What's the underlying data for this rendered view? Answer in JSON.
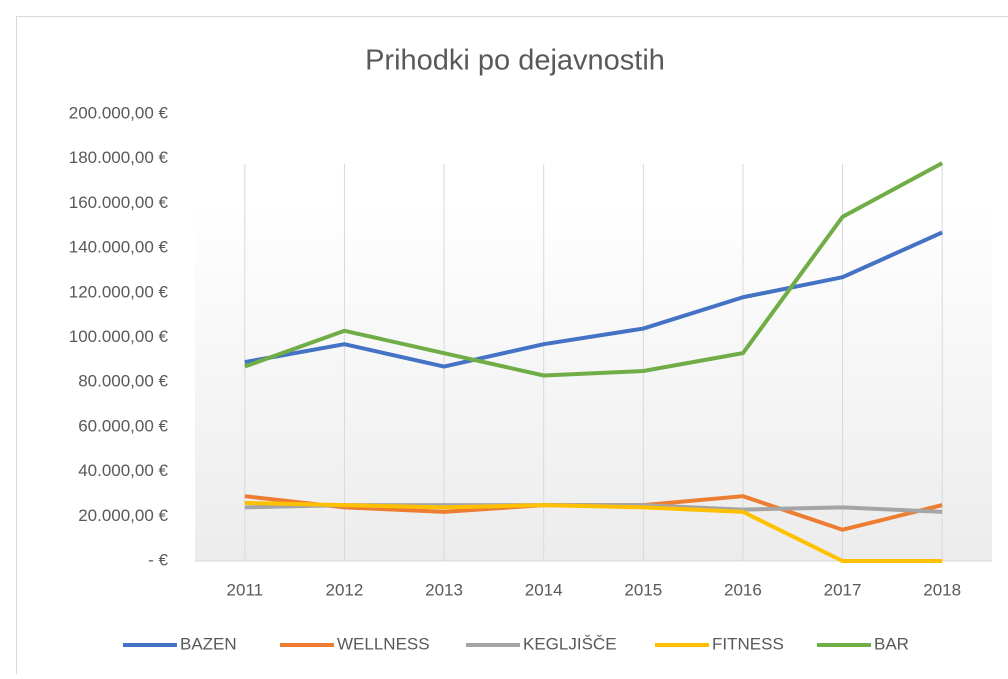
{
  "chart_data": {
    "type": "line",
    "title": "Prihodki po dejavnostih",
    "categories": [
      "2011",
      "2012",
      "2013",
      "2014",
      "2015",
      "2016",
      "2017",
      "2018"
    ],
    "series": [
      {
        "name": "BAZEN",
        "color": "#4472c4",
        "values": [
          89000,
          97000,
          87000,
          97000,
          104000,
          118000,
          127000,
          147000
        ]
      },
      {
        "name": "WELLNESS",
        "color": "#ed7d31",
        "values": [
          29000,
          24000,
          22000,
          25000,
          25000,
          29000,
          14000,
          25000
        ]
      },
      {
        "name": "KEGLJIŠČE",
        "color": "#a5a5a5",
        "values": [
          24000,
          25000,
          25000,
          25000,
          25000,
          23000,
          24000,
          22000
        ]
      },
      {
        "name": "FITNESS",
        "color": "#ffc000",
        "values": [
          26000,
          25000,
          24000,
          25000,
          24000,
          22000,
          0,
          0
        ]
      },
      {
        "name": "BAR",
        "color": "#70ad47",
        "values": [
          87000,
          103000,
          93000,
          83000,
          85000,
          93000,
          154000,
          178000
        ]
      }
    ],
    "ylim": [
      0,
      200000
    ],
    "yticks": [
      {
        "value": 0,
        "label": "-   €"
      },
      {
        "value": 20000,
        "label": "20.000,00 €"
      },
      {
        "value": 40000,
        "label": "40.000,00 €"
      },
      {
        "value": 60000,
        "label": "60.000,00 €"
      },
      {
        "value": 80000,
        "label": "80.000,00 €"
      },
      {
        "value": 100000,
        "label": "100.000,00 €"
      },
      {
        "value": 120000,
        "label": "120.000,00 €"
      },
      {
        "value": 140000,
        "label": "140.000,00 €"
      },
      {
        "value": 160000,
        "label": "160.000,00 €"
      },
      {
        "value": 180000,
        "label": "180.000,00 €"
      },
      {
        "value": 200000,
        "label": "200.000,00 €"
      }
    ],
    "grid": true,
    "legend": "bottom"
  }
}
